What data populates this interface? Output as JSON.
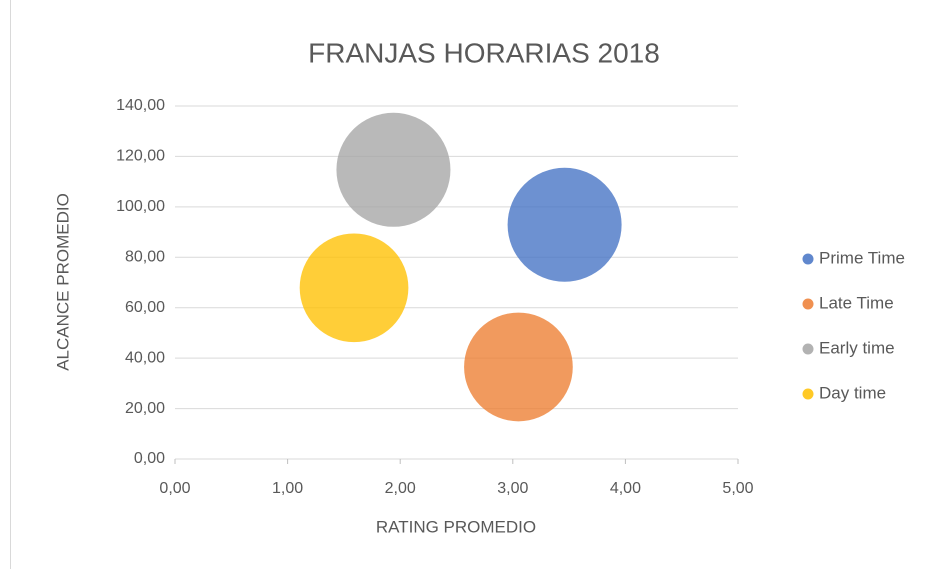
{
  "chart_data": {
    "type": "bubble",
    "title": "FRANJAS HORARIAS 2018",
    "x_label": "RATING PROMEDIO",
    "y_label": "ALCANCE PROMEDIO",
    "xlim": [
      0,
      5
    ],
    "xticks": [
      {
        "value": 0,
        "label": "0,00"
      },
      {
        "value": 1,
        "label": "1,00"
      },
      {
        "value": 2,
        "label": "2,00"
      },
      {
        "value": 3,
        "label": "3,00"
      },
      {
        "value": 4,
        "label": "4,00"
      },
      {
        "value": 5,
        "label": "5,00"
      }
    ],
    "ylim": [
      0,
      140
    ],
    "yticks": [
      {
        "value": 0,
        "label": "0,00"
      },
      {
        "value": 20,
        "label": "20,00"
      },
      {
        "value": 40,
        "label": "40,00"
      },
      {
        "value": 60,
        "label": "60,00"
      },
      {
        "value": 80,
        "label": "80,00"
      },
      {
        "value": 100,
        "label": "100,00"
      },
      {
        "value": 120,
        "label": "120,00"
      },
      {
        "value": 140,
        "label": "140,00"
      }
    ],
    "grid": true,
    "legend": "right",
    "series": [
      {
        "name": "Prime Time",
        "color": "#4472c4",
        "x": [
          3.46
        ],
        "values": [
          92.9
        ],
        "sizes": [
          1.1
        ]
      },
      {
        "name": "Late Time",
        "color": "#ed7d31",
        "x": [
          3.05
        ],
        "values": [
          36.5
        ],
        "sizes": [
          1.0
        ]
      },
      {
        "name": "Early time",
        "color": "#a5a5a5",
        "x": [
          1.94
        ],
        "values": [
          114.7
        ],
        "sizes": [
          1.1
        ]
      },
      {
        "name": "Day time",
        "color": "#ffc000",
        "x": [
          1.59
        ],
        "values": [
          67.9
        ],
        "sizes": [
          1.0
        ]
      }
    ]
  }
}
